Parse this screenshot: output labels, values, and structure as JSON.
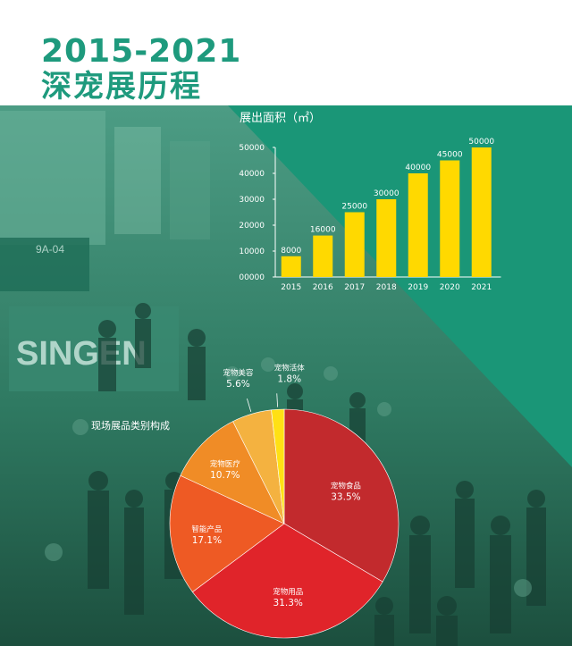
{
  "header": {
    "years": "2015-2021",
    "title": "深宠展历程"
  },
  "colors": {
    "teal": "#1e9a7d",
    "bar": "#ffd900",
    "text": "#ffffff",
    "pie": [
      "#c22a2d",
      "#e0242a",
      "#ee5a24",
      "#f08c26",
      "#f4b240",
      "#ffe014"
    ]
  },
  "chart_data": [
    {
      "type": "bar",
      "title": "展出面积（㎡）",
      "categories": [
        "2015",
        "2016",
        "2017",
        "2018",
        "2019",
        "2020",
        "2021"
      ],
      "values": [
        8000,
        16000,
        25000,
        30000,
        40000,
        45000,
        50000
      ],
      "value_labels": [
        "8000",
        "16000",
        "25000",
        "30000",
        "40000",
        "45000",
        "50000"
      ],
      "yticks": [
        "00000",
        "10000",
        "20000",
        "30000",
        "40000",
        "50000"
      ],
      "ylim": [
        0,
        50000
      ],
      "grid": false
    },
    {
      "type": "pie",
      "title": "现场展品类别构成",
      "slices": [
        {
          "name": "宠物食品",
          "value": 33.5,
          "label": "33.5%"
        },
        {
          "name": "宠物用品",
          "value": 31.3,
          "label": "31.3%"
        },
        {
          "name": "智能产品",
          "value": 17.1,
          "label": "17.1%"
        },
        {
          "name": "宠物医疗",
          "value": 10.7,
          "label": "10.7%"
        },
        {
          "name": "宠物美容",
          "value": 5.6,
          "label": "5.6%"
        },
        {
          "name": "宠物活体",
          "value": 1.8,
          "label": "1.8%"
        }
      ]
    }
  ]
}
